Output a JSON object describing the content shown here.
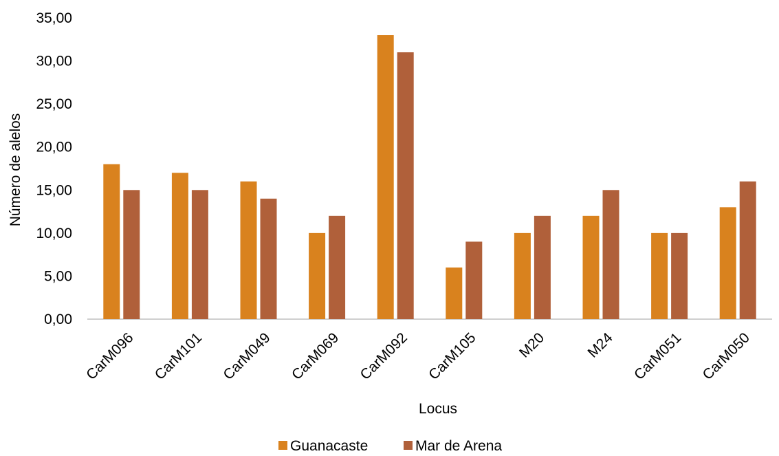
{
  "chart_data": {
    "type": "bar",
    "categories": [
      "CarM096",
      "CarM101",
      "CarM049",
      "CarM069",
      "CarM092",
      "CarM105",
      "M20",
      "M24",
      "CarM051",
      "CarM050"
    ],
    "series": [
      {
        "name": "Guanacaste",
        "values": [
          18,
          17,
          16,
          10,
          33,
          6,
          10,
          12,
          10,
          13
        ],
        "color": "#D9821E"
      },
      {
        "name": "Mar de Arena",
        "values": [
          15,
          15,
          14,
          12,
          31,
          9,
          12,
          15,
          10,
          16
        ],
        "color": "#B0603A"
      }
    ],
    "title": "",
    "xlabel": "Locus",
    "ylabel": "Número de alelos",
    "ylim": [
      0,
      35
    ],
    "yticks": [
      "0,00",
      "5,00",
      "10,00",
      "15,00",
      "20,00",
      "25,00",
      "30,00",
      "35,00"
    ],
    "grid": false,
    "legend_position": "bottom"
  }
}
